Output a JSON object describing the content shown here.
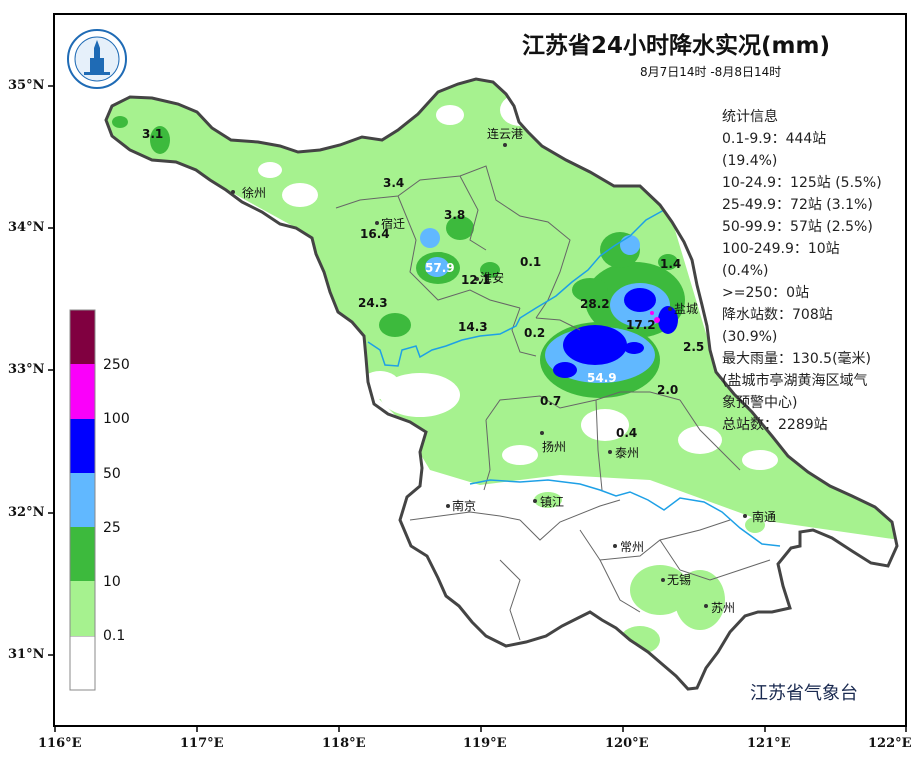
{
  "title": "江苏省24小时降水实况(mm)",
  "subtitle": "8月7日14时 -8月8日14时",
  "footer": "江苏省气象台",
  "stats": [
    "统计信息",
    "0.1-9.9：444站",
    "(19.4%)",
    "10-24.9：125站 (5.5%)",
    "25-49.9：72站 (3.1%)",
    "50-99.9：57站 (2.5%)",
    "100-249.9：10站",
    "(0.4%)",
    ">=250：0站",
    "降水站数：708站",
    "(30.9%)",
    "最大雨量：130.5(毫米)",
    "(盐城市亭湖黄海区域气",
    "象预警中心)",
    "总站数：2289站"
  ],
  "legend": [
    {
      "label": "0.1",
      "color": "#ffffff"
    },
    {
      "label": "10",
      "color": "#a6f28f"
    },
    {
      "label": "25",
      "color": "#3dba3d"
    },
    {
      "label": "50",
      "color": "#61b8ff"
    },
    {
      "label": "100",
      "color": "#0000ff"
    },
    {
      "label": "250",
      "color": "#fa00fa"
    },
    {
      "label": "",
      "color": "#800040"
    }
  ],
  "x_axis": [
    "116°E",
    "117°E",
    "118°E",
    "119°E",
    "120°E",
    "121°E",
    "122°E"
  ],
  "y_axis": [
    "35°N",
    "34°N",
    "33°N",
    "32°N",
    "31°N"
  ],
  "cities": [
    {
      "name": "连云港"
    },
    {
      "name": "徐州"
    },
    {
      "name": "宿迁"
    },
    {
      "name": "淮安"
    },
    {
      "name": "盐城"
    },
    {
      "name": "扬州"
    },
    {
      "name": "泰州"
    },
    {
      "name": "南京"
    },
    {
      "name": "镇江"
    },
    {
      "name": "常州"
    },
    {
      "name": "南通"
    },
    {
      "name": "无锡"
    },
    {
      "name": "苏州"
    }
  ],
  "values": [
    "3.1",
    "3.4",
    "16.4",
    "3.8",
    "57.9",
    "12.1",
    "0.1",
    "24.3",
    "14.3",
    "1.4",
    "28.2",
    "17.2",
    "0.2",
    "2.5",
    "54.9",
    "2.0",
    "0.7",
    "0.4"
  ],
  "colors": {
    "boundary": "#444444",
    "river": "#1ea0e6",
    "light_green": "#a6f28f",
    "green": "#3dba3d",
    "light_blue": "#61b8ff",
    "blue": "#0000ff",
    "magenta": "#fa00fa"
  }
}
